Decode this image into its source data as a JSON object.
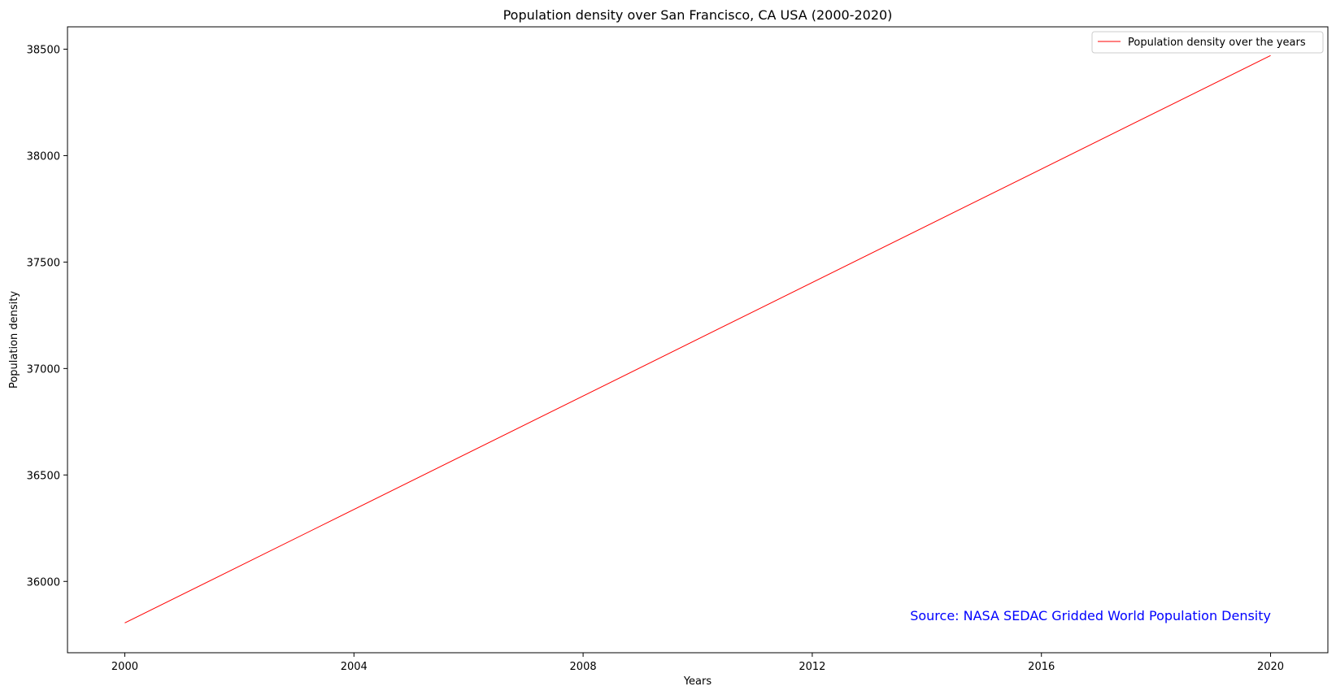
{
  "chart_data": {
    "type": "line",
    "title": "Population density over San Francisco, CA USA (2000-2020)",
    "xlabel": "Years",
    "ylabel": "Population density",
    "x_ticks": [
      2000,
      2004,
      2008,
      2012,
      2016,
      2020
    ],
    "y_ticks": [
      36000,
      36500,
      37000,
      37500,
      38000,
      38500
    ],
    "x_tick_labels": [
      "2000",
      "2004",
      "2008",
      "2012",
      "2016",
      "2020"
    ],
    "y_tick_labels": [
      "36000",
      "36500",
      "37000",
      "37500",
      "38000",
      "38500"
    ],
    "xlim": [
      1999,
      2021.0
    ],
    "ylim": [
      35665,
      38605
    ],
    "grid": false,
    "legend_position": "top-right",
    "series": [
      {
        "name": "Population density over the years",
        "color": "#ff0000",
        "x": [
          2000,
          2020
        ],
        "y": [
          35805,
          38470
        ]
      }
    ],
    "annotation": {
      "text": "Source: NASA SEDAC Gridded World Population Density",
      "color": "#0000ff"
    }
  }
}
